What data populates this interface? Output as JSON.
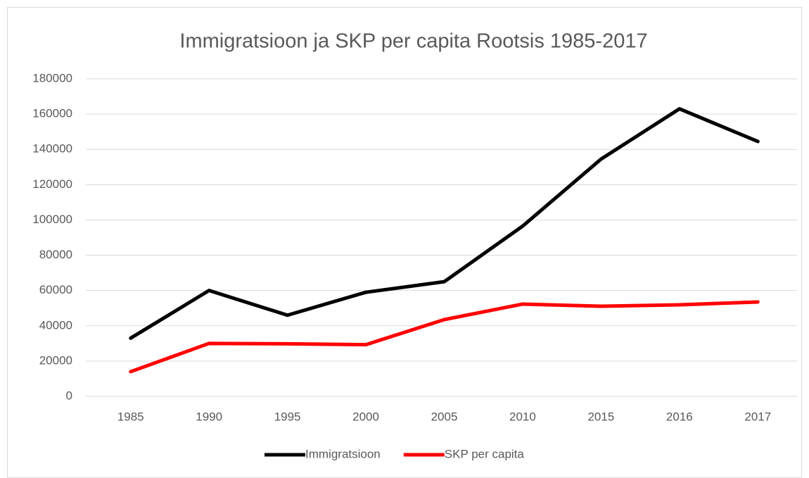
{
  "chart_data": {
    "type": "line",
    "title": "Immigratsioon ja SKP per capita Rootsis 1985-2017",
    "categories": [
      "1985",
      "1990",
      "1995",
      "2000",
      "2005",
      "2010",
      "2015",
      "2016",
      "2017"
    ],
    "series": [
      {
        "name": "Immigratsioon",
        "color": "#000000",
        "values": [
          33000,
          60000,
          46000,
          59000,
          65000,
          96500,
          134500,
          163000,
          144500
        ]
      },
      {
        "name": "SKP per capita",
        "color": "#ff0000",
        "values": [
          14000,
          30000,
          29800,
          29300,
          43500,
          52300,
          51100,
          51900,
          53500
        ]
      }
    ],
    "ylim": [
      0,
      180000
    ],
    "yticks": [
      0,
      20000,
      40000,
      60000,
      80000,
      100000,
      120000,
      140000,
      160000,
      180000
    ],
    "grid": true,
    "legend": "bottom"
  }
}
